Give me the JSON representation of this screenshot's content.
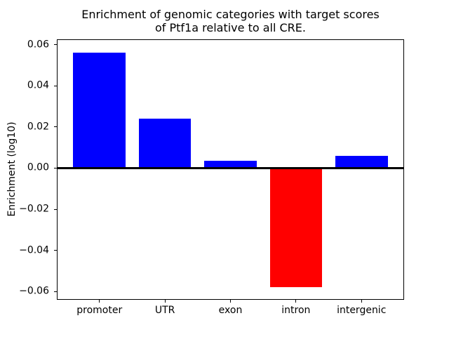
{
  "chart_data": {
    "type": "bar",
    "title": "Enrichment of genomic categories with target scores\nof Ptf1a relative to all CRE.",
    "xlabel": "",
    "ylabel": "Enrichment (log10)",
    "categories": [
      "promoter",
      "UTR",
      "exon",
      "intron",
      "intergenic"
    ],
    "values": [
      0.056,
      0.024,
      0.0037,
      -0.058,
      0.006
    ],
    "bar_colors": [
      "#0000ff",
      "#0000ff",
      "#0000ff",
      "#ff0000",
      "#0000ff"
    ],
    "bar_width": 0.8,
    "xlim": [
      -0.64,
      4.64
    ],
    "ylim": [
      -0.0637,
      0.0623
    ],
    "yticks": [
      0.06,
      0.04,
      0.02,
      0,
      -0.02,
      -0.04,
      -0.06
    ],
    "ytick_labels": [
      "0.06",
      "0.04",
      "0.02",
      "0.00",
      "−0.02",
      "−0.04",
      "−0.06"
    ],
    "zero_line": true,
    "zero_line_color": "#000000",
    "grid": false,
    "legend": false,
    "plot_background": "#ffffff",
    "figure_background": "#ffffff"
  }
}
